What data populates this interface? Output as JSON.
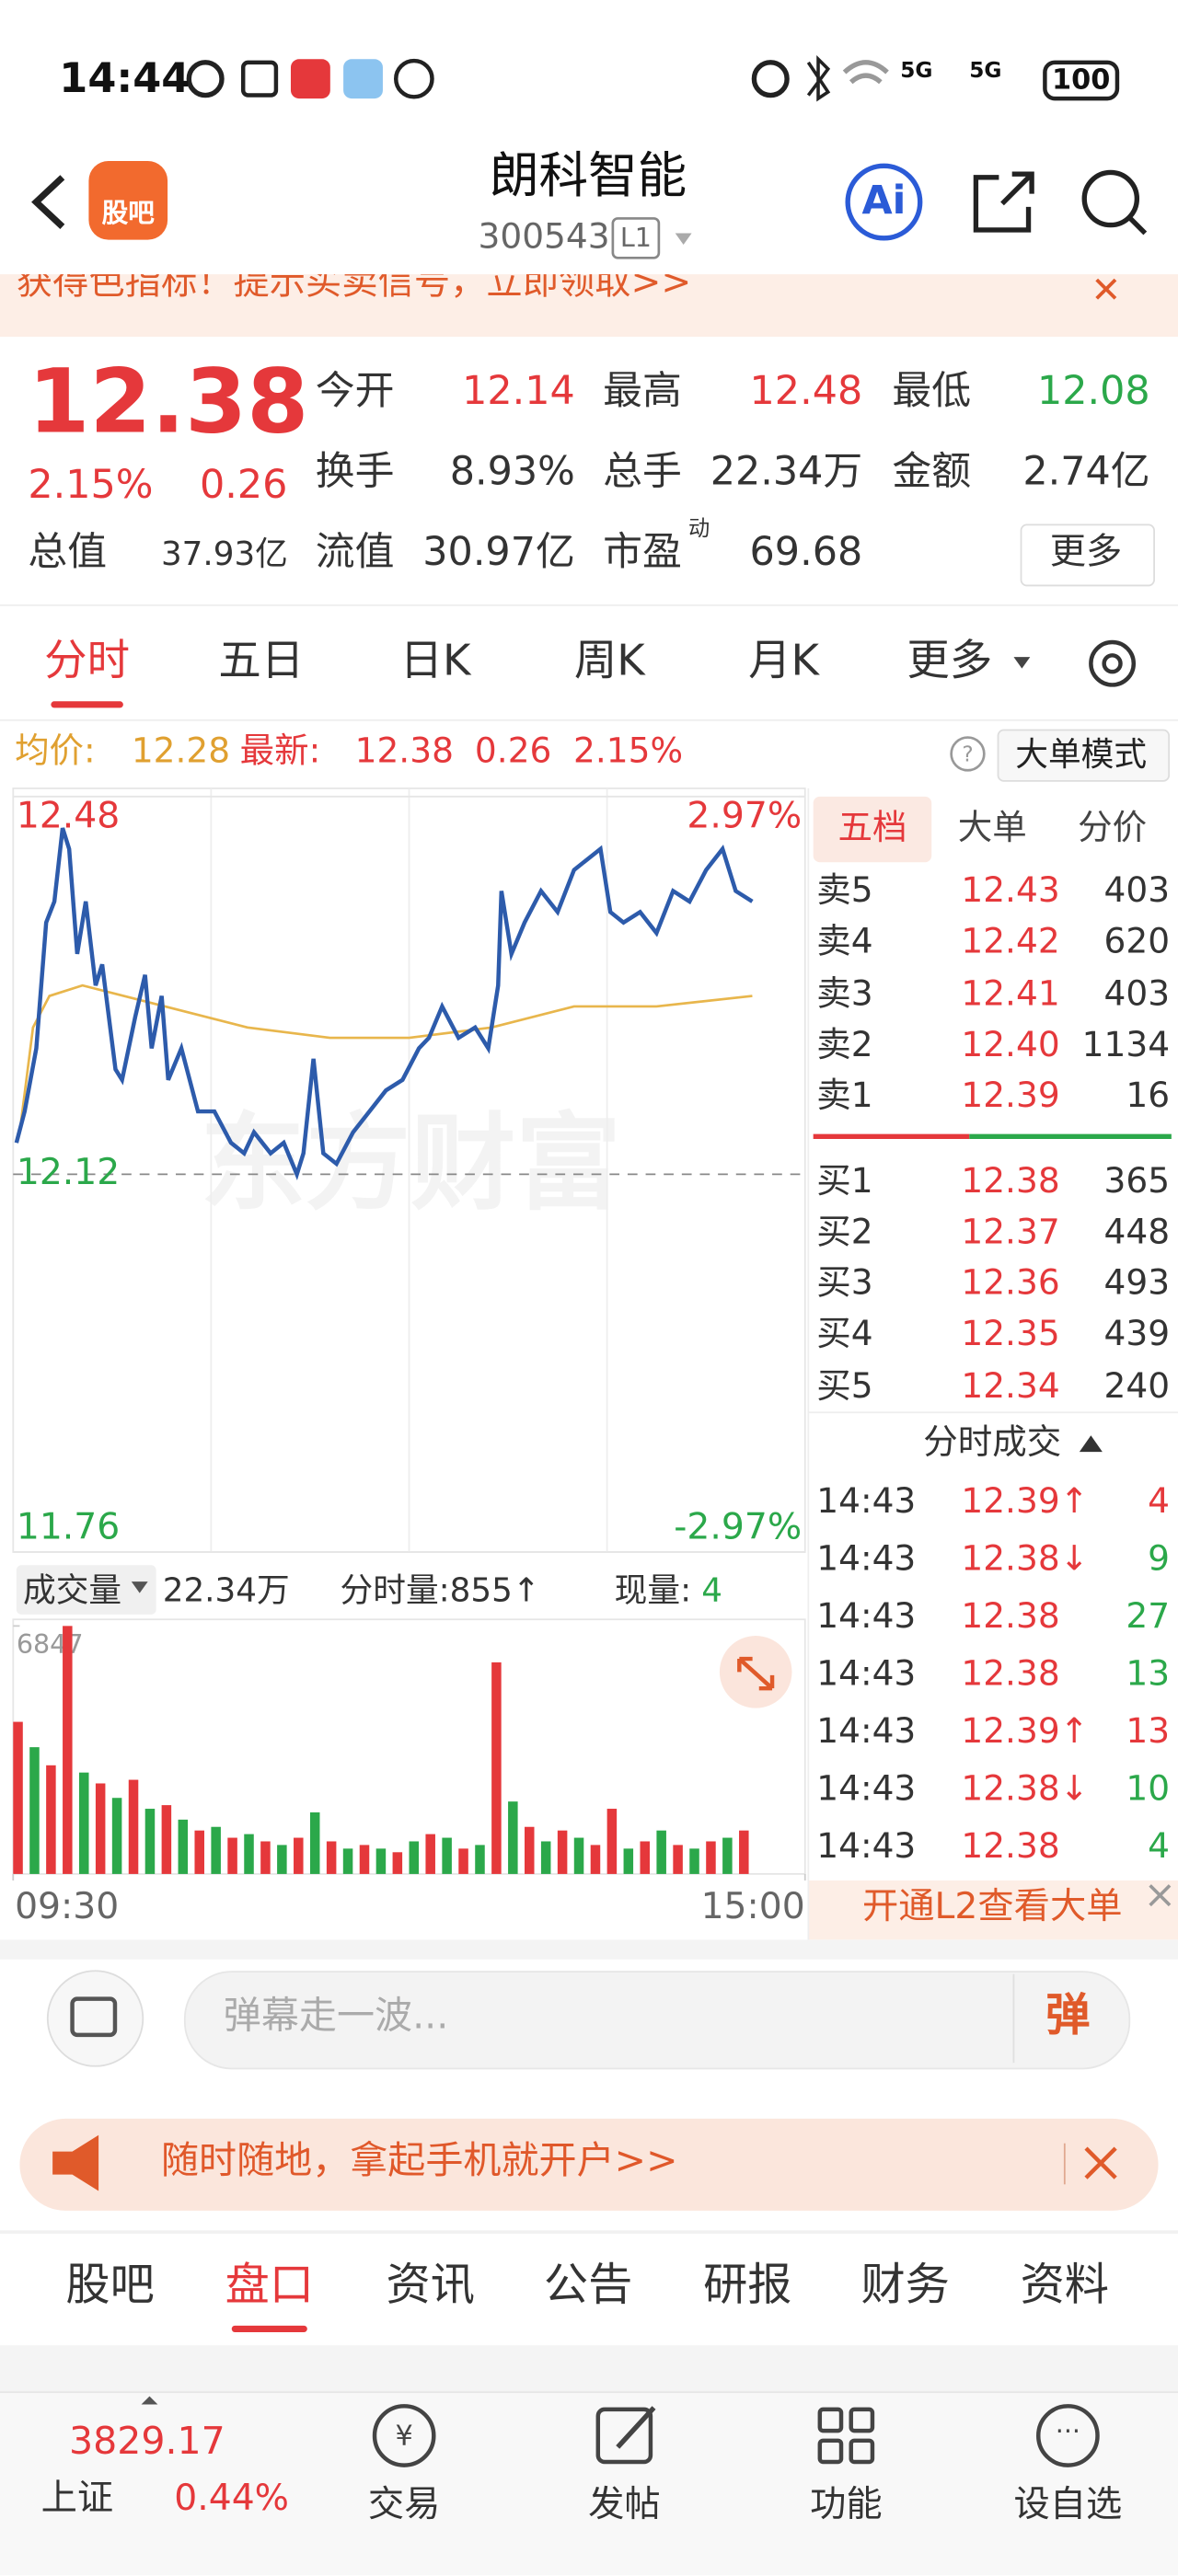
{
  "status_bar": {
    "time": "14:44",
    "net1": "5G",
    "net2": "5G",
    "battery": "100"
  },
  "header": {
    "logo": "股吧",
    "title": "朗科智能",
    "code": "300543",
    "level": "L1",
    "ai": "Ai"
  },
  "banner": {
    "text": "获得色指标！提示买卖信号，立即领取>>"
  },
  "quote": {
    "price": "12.38",
    "change_pct": "2.15%",
    "change": "0.26",
    "total_value_label": "总值",
    "total_value": "37.93亿",
    "stats": [
      {
        "label": "今开",
        "value": "12.14",
        "color": "#e5383b"
      },
      {
        "label": "最高",
        "value": "12.48",
        "color": "#e5383b"
      },
      {
        "label": "最低",
        "value": "12.08",
        "color": "#2ba84a"
      },
      {
        "label": "换手",
        "value": "8.93%",
        "color": "#333333"
      },
      {
        "label": "总手",
        "value": "22.34万",
        "color": "#333333"
      },
      {
        "label": "金额",
        "value": "2.74亿",
        "color": "#333333"
      },
      {
        "label": "流值",
        "value": "30.97亿",
        "color": "#333333"
      },
      {
        "label": "市盈",
        "label_sup": "动",
        "value": "69.68",
        "color": "#333333"
      }
    ],
    "more": "更多"
  },
  "period_tabs": [
    "分时",
    "五日",
    "日K",
    "周K",
    "月K",
    "更多"
  ],
  "active_period": 0,
  "info_row": {
    "avg_label": "均价:",
    "avg": "12.28",
    "last_label": "最新:",
    "last": "12.38",
    "change": "0.26",
    "change_pct": "2.15%",
    "mode": "大单模式"
  },
  "chart_data": [
    {
      "type": "line",
      "watermark": "东方财富",
      "xlim": [
        0,
        240
      ],
      "xgrid": [
        60,
        120,
        180
      ],
      "ylim": [
        11.76,
        12.48
      ],
      "yticks": [
        11.76,
        12.12,
        12.48
      ],
      "y2lim": [
        -2.97,
        2.97
      ],
      "y2ticks": [
        {
          "value": -2.97,
          "label": "-2.97%"
        },
        {
          "value": 2.97,
          "label": "2.97%"
        }
      ],
      "series": [
        {
          "color": "#2d5bab",
          "x": [
            1,
            3.5,
            7,
            10,
            12.5,
            15,
            17,
            19.4,
            22,
            25,
            27,
            31,
            33,
            37,
            40,
            42,
            45,
            47,
            51,
            56,
            61,
            66,
            70,
            73,
            78,
            82,
            86,
            88,
            91,
            94,
            98,
            103,
            108,
            113,
            118,
            123,
            126,
            130,
            135,
            140,
            144,
            147,
            148,
            151,
            155,
            160,
            165,
            170,
            174,
            178,
            181,
            185,
            190,
            195,
            200,
            205,
            210,
            215,
            219,
            224
          ],
          "values": [
            12.15,
            12.18,
            12.24,
            12.36,
            12.38,
            12.45,
            12.43,
            12.33,
            12.38,
            12.3,
            12.32,
            12.22,
            12.21,
            12.27,
            12.31,
            12.24,
            12.29,
            12.21,
            12.24,
            12.18,
            12.18,
            12.15,
            12.14,
            12.16,
            12.14,
            12.15,
            12.12,
            12.14,
            12.23,
            12.14,
            12.13,
            12.16,
            12.18,
            12.2,
            12.21,
            12.24,
            12.25,
            12.28,
            12.25,
            12.26,
            12.24,
            12.3,
            12.39,
            12.33,
            12.36,
            12.39,
            12.37,
            12.41,
            12.42,
            12.43,
            12.37,
            12.36,
            12.37,
            12.35,
            12.39,
            12.38,
            12.41,
            12.43,
            12.39,
            12.38
          ]
        },
        {
          "color": "#e8b64c",
          "x": [
            2,
            6,
            11,
            21,
            46,
            71,
            96,
            120,
            145,
            170,
            195,
            224
          ],
          "values": [
            12.16,
            12.26,
            12.29,
            12.3,
            12.28,
            12.26,
            12.25,
            12.25,
            12.26,
            12.28,
            12.28,
            12.29
          ]
        }
      ]
    },
    {
      "type": "bar",
      "xlim": [
        0,
        240
      ],
      "xticks": [
        {
          "value": 0,
          "label": "09:30"
        },
        {
          "value": 240,
          "label": "15:00"
        }
      ],
      "ylim": [
        0,
        6847
      ],
      "yticks": [
        6847
      ],
      "x": [
        0,
        5,
        10,
        15,
        20,
        25,
        30,
        35,
        40,
        45,
        50,
        55,
        60,
        65,
        70,
        75,
        80,
        85,
        90,
        95,
        100,
        105,
        110,
        115,
        120,
        125,
        130,
        135,
        140,
        145,
        150,
        155,
        160,
        165,
        170,
        175,
        180,
        185,
        190,
        195,
        200,
        205,
        210,
        215,
        220
      ],
      "values": [
        4200,
        3500,
        3000,
        6847,
        2800,
        2500,
        2100,
        2600,
        1800,
        1900,
        1500,
        1200,
        1300,
        1000,
        1100,
        900,
        800,
        1000,
        1700,
        900,
        700,
        800,
        700,
        600,
        900,
        1100,
        1000,
        700,
        800,
        5843,
        2000,
        1300,
        900,
        1200,
        1000,
        800,
        1800,
        700,
        900,
        1200,
        800,
        700,
        900,
        1000,
        1200
      ],
      "colors": [
        "#e5383b",
        "#2ba84a",
        "#e5383b",
        "#e5383b",
        "#2ba84a",
        "#e5383b",
        "#2ba84a",
        "#e5383b",
        "#2ba84a",
        "#e5383b",
        "#2ba84a",
        "#e5383b",
        "#2ba84a",
        "#e5383b",
        "#2ba84a",
        "#e5383b",
        "#2ba84a",
        "#e5383b",
        "#2ba84a",
        "#e5383b",
        "#2ba84a",
        "#e5383b",
        "#2ba84a",
        "#e5383b",
        "#2ba84a",
        "#e5383b",
        "#2ba84a",
        "#e5383b",
        "#2ba84a",
        "#e5383b",
        "#2ba84a",
        "#e5383b",
        "#2ba84a",
        "#e5383b",
        "#2ba84a",
        "#e5383b",
        "#e5383b",
        "#2ba84a",
        "#e5383b",
        "#2ba84a",
        "#e5383b",
        "#2ba84a",
        "#e5383b",
        "#2ba84a",
        "#e5383b"
      ]
    }
  ],
  "volume_header": {
    "label": "成交量",
    "total": "22.34万",
    "minute_vol": "分时量:855↑",
    "current_label": "现量:",
    "current": "4"
  },
  "side_panel": {
    "tabs": [
      "五档",
      "大单",
      "分价"
    ],
    "asks": [
      {
        "label": "卖5",
        "price": "12.43",
        "volume": "403"
      },
      {
        "label": "卖4",
        "price": "12.42",
        "volume": "620"
      },
      {
        "label": "卖3",
        "price": "12.41",
        "volume": "403"
      },
      {
        "label": "卖2",
        "price": "12.40",
        "volume": "1134"
      },
      {
        "label": "卖1",
        "price": "12.39",
        "volume": "16"
      }
    ],
    "bids": [
      {
        "label": "买1",
        "price": "12.38",
        "volume": "365"
      },
      {
        "label": "买2",
        "price": "12.37",
        "volume": "448"
      },
      {
        "label": "买3",
        "price": "12.36",
        "volume": "493"
      },
      {
        "label": "买4",
        "price": "12.35",
        "volume": "439"
      },
      {
        "label": "买5",
        "price": "12.34",
        "volume": "240"
      }
    ],
    "trades_title": "分时成交",
    "trades": [
      {
        "time": "14:43",
        "price": "12.39↑",
        "volume": "4",
        "color": "#e5383b"
      },
      {
        "time": "14:43",
        "price": "12.38↓",
        "volume": "9",
        "color": "#2ba84a"
      },
      {
        "time": "14:43",
        "price": "12.38",
        "volume": "27",
        "color": "#2ba84a"
      },
      {
        "time": "14:43",
        "price": "12.38",
        "volume": "13",
        "color": "#2ba84a"
      },
      {
        "time": "14:43",
        "price": "12.39↑",
        "volume": "13",
        "color": "#e5383b"
      },
      {
        "time": "14:43",
        "price": "12.38↓",
        "volume": "10",
        "color": "#2ba84a"
      },
      {
        "time": "14:43",
        "price": "12.38",
        "volume": "4",
        "color": "#2ba84a"
      }
    ],
    "l2": "开通L2查看大单"
  },
  "comment": {
    "placeholder": "弹幕走一波...",
    "button": "弹"
  },
  "ad": {
    "text": "随时随地，拿起手机就开户>>"
  },
  "bottom_tabs": [
    "股吧",
    "盘口",
    "资讯",
    "公告",
    "研报",
    "财务",
    "资料"
  ],
  "active_tab": 1,
  "bottom_nav": {
    "index_value": "3829.17",
    "index_name": "上证",
    "index_change": "0.44%",
    "items": [
      "交易",
      "发帖",
      "功能",
      "设自选"
    ]
  }
}
